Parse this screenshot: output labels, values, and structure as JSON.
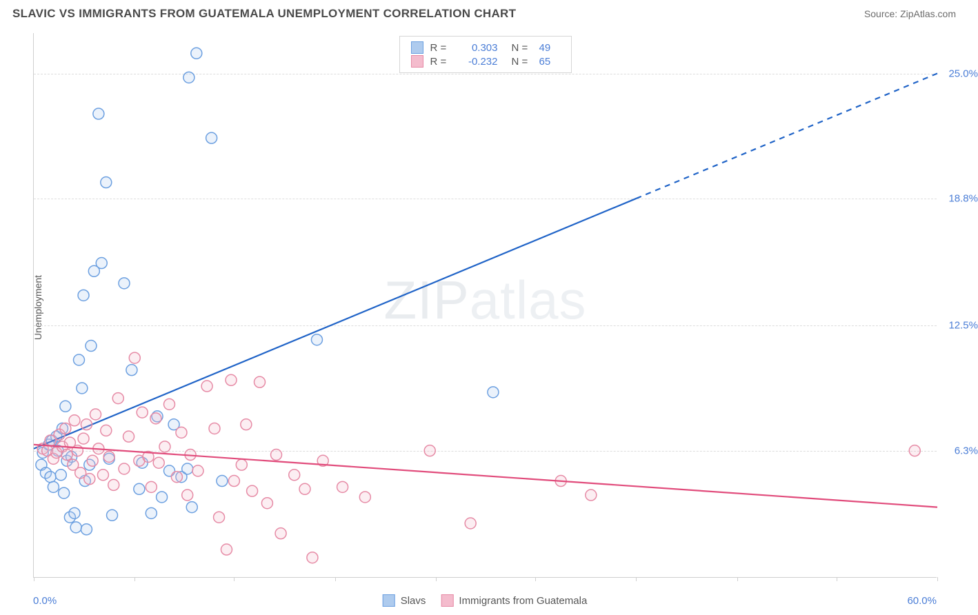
{
  "title": "SLAVIC VS IMMIGRANTS FROM GUATEMALA UNEMPLOYMENT CORRELATION CHART",
  "source": "Source: ZipAtlas.com",
  "ylabel": "Unemployment",
  "watermark_a": "ZIP",
  "watermark_b": "atlas",
  "chart": {
    "type": "scatter",
    "xlim": [
      0,
      60
    ],
    "ylim": [
      0,
      27
    ],
    "x_ticks": [
      0,
      6.7,
      13.3,
      20,
      26.7,
      33.3,
      40,
      46.7,
      53.3,
      60
    ],
    "y_gridlines": [
      6.3,
      12.5,
      18.8,
      25.0
    ],
    "y_tick_labels": [
      "6.3%",
      "12.5%",
      "18.8%",
      "25.0%"
    ],
    "x_min_label": "0.0%",
    "x_max_label": "60.0%",
    "background_color": "#ffffff",
    "grid_color": "#dcdcdc",
    "axis_color": "#cfcfcf",
    "label_color": "#4a7dd6",
    "marker_radius": 8,
    "marker_stroke_width": 1.5,
    "marker_fill_opacity": 0.25,
    "line_width": 2.2,
    "series": [
      {
        "name": "Slavs",
        "color_stroke": "#6b9fe0",
        "color_fill": "#aecbee",
        "line_color": "#1f63c7",
        "R": 0.303,
        "N": 49,
        "trend": {
          "x1": 0,
          "y1": 6.4,
          "x2": 60,
          "y2": 25.0,
          "solid_until_x": 40
        },
        "points": [
          [
            0.5,
            5.6
          ],
          [
            0.6,
            6.2
          ],
          [
            0.8,
            5.2
          ],
          [
            1.0,
            6.6
          ],
          [
            1.1,
            5.0
          ],
          [
            1.2,
            6.8
          ],
          [
            1.3,
            4.5
          ],
          [
            1.5,
            7.0
          ],
          [
            1.6,
            6.3
          ],
          [
            1.8,
            5.1
          ],
          [
            1.9,
            7.4
          ],
          [
            2.0,
            4.2
          ],
          [
            2.1,
            8.5
          ],
          [
            2.2,
            5.8
          ],
          [
            2.4,
            3.0
          ],
          [
            2.5,
            6.0
          ],
          [
            2.7,
            3.2
          ],
          [
            2.8,
            2.5
          ],
          [
            3.0,
            10.8
          ],
          [
            3.2,
            9.4
          ],
          [
            3.4,
            4.8
          ],
          [
            3.5,
            2.4
          ],
          [
            3.7,
            5.6
          ],
          [
            3.8,
            11.5
          ],
          [
            4.0,
            15.2
          ],
          [
            4.3,
            23.0
          ],
          [
            4.5,
            15.6
          ],
          [
            4.8,
            19.6
          ],
          [
            5.0,
            5.9
          ],
          [
            5.2,
            3.1
          ],
          [
            6.0,
            14.6
          ],
          [
            6.5,
            10.3
          ],
          [
            7.0,
            4.4
          ],
          [
            7.2,
            5.7
          ],
          [
            7.8,
            3.2
          ],
          [
            8.2,
            8.0
          ],
          [
            8.5,
            4.0
          ],
          [
            9.0,
            5.3
          ],
          [
            9.3,
            7.6
          ],
          [
            9.8,
            5.0
          ],
          [
            10.2,
            5.4
          ],
          [
            10.3,
            24.8
          ],
          [
            10.5,
            3.5
          ],
          [
            11.8,
            21.8
          ],
          [
            12.5,
            4.8
          ],
          [
            18.8,
            11.8
          ],
          [
            30.5,
            9.2
          ],
          [
            10.8,
            26.0
          ],
          [
            3.3,
            14.0
          ]
        ]
      },
      {
        "name": "Immigrants from Guatemala",
        "color_stroke": "#e68aa5",
        "color_fill": "#f4bccd",
        "line_color": "#e14b7b",
        "R": -0.232,
        "N": 65,
        "trend": {
          "x1": 0,
          "y1": 6.6,
          "x2": 60,
          "y2": 3.5,
          "solid_until_x": 60
        },
        "points": [
          [
            0.6,
            6.4
          ],
          [
            0.9,
            6.3
          ],
          [
            1.1,
            6.8
          ],
          [
            1.3,
            5.9
          ],
          [
            1.5,
            6.2
          ],
          [
            1.7,
            7.1
          ],
          [
            1.9,
            6.5
          ],
          [
            2.1,
            7.4
          ],
          [
            2.2,
            6.1
          ],
          [
            2.4,
            6.7
          ],
          [
            2.6,
            5.6
          ],
          [
            2.7,
            7.8
          ],
          [
            2.9,
            6.3
          ],
          [
            3.1,
            5.2
          ],
          [
            3.3,
            6.9
          ],
          [
            3.5,
            7.6
          ],
          [
            3.7,
            4.9
          ],
          [
            3.9,
            5.8
          ],
          [
            4.1,
            8.1
          ],
          [
            4.3,
            6.4
          ],
          [
            4.6,
            5.1
          ],
          [
            4.8,
            7.3
          ],
          [
            5.0,
            6.0
          ],
          [
            5.3,
            4.6
          ],
          [
            5.6,
            8.9
          ],
          [
            6.0,
            5.4
          ],
          [
            6.3,
            7.0
          ],
          [
            6.7,
            10.9
          ],
          [
            7.0,
            5.8
          ],
          [
            7.2,
            8.2
          ],
          [
            7.6,
            6.0
          ],
          [
            7.8,
            4.5
          ],
          [
            8.1,
            7.9
          ],
          [
            8.3,
            5.7
          ],
          [
            8.7,
            6.5
          ],
          [
            9.0,
            8.6
          ],
          [
            9.5,
            5.0
          ],
          [
            9.8,
            7.2
          ],
          [
            10.2,
            4.1
          ],
          [
            10.4,
            6.1
          ],
          [
            10.9,
            5.3
          ],
          [
            11.5,
            9.5
          ],
          [
            12.0,
            7.4
          ],
          [
            12.3,
            3.0
          ],
          [
            12.8,
            1.4
          ],
          [
            13.1,
            9.8
          ],
          [
            13.3,
            4.8
          ],
          [
            13.8,
            5.6
          ],
          [
            14.1,
            7.6
          ],
          [
            14.5,
            4.3
          ],
          [
            15.0,
            9.7
          ],
          [
            15.5,
            3.7
          ],
          [
            16.1,
            6.1
          ],
          [
            16.4,
            2.2
          ],
          [
            17.3,
            5.1
          ],
          [
            18.0,
            4.4
          ],
          [
            18.5,
            1.0
          ],
          [
            19.2,
            5.8
          ],
          [
            20.5,
            4.5
          ],
          [
            22.0,
            4.0
          ],
          [
            26.3,
            6.3
          ],
          [
            29.0,
            2.7
          ],
          [
            35.0,
            4.8
          ],
          [
            37.0,
            4.1
          ],
          [
            58.5,
            6.3
          ]
        ]
      }
    ]
  },
  "legend_top": {
    "rows": [
      {
        "swatch_fill": "#aecbee",
        "swatch_stroke": "#6b9fe0",
        "R": "0.303",
        "N": "49"
      },
      {
        "swatch_fill": "#f4bccd",
        "swatch_stroke": "#e68aa5",
        "R": "-0.232",
        "N": "65"
      }
    ],
    "r_prefix": "R =",
    "n_prefix": "N ="
  },
  "legend_bottom": {
    "items": [
      {
        "swatch_fill": "#aecbee",
        "swatch_stroke": "#6b9fe0",
        "label": "Slavs"
      },
      {
        "swatch_fill": "#f4bccd",
        "swatch_stroke": "#e68aa5",
        "label": "Immigrants from Guatemala"
      }
    ]
  }
}
